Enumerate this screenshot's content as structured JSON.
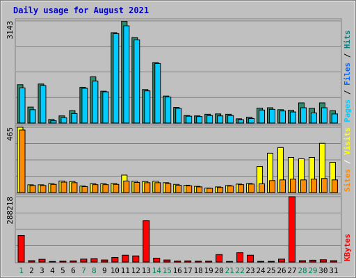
{
  "chart_data": {
    "type": "bar",
    "title": "Daily usage for August 2021",
    "days": [
      "1",
      "2",
      "3",
      "4",
      "5",
      "6",
      "7",
      "8",
      "9",
      "10",
      "11",
      "12",
      "13",
      "14",
      "15",
      "16",
      "17",
      "18",
      "19",
      "20",
      "21",
      "22",
      "23",
      "24",
      "25",
      "26",
      "27",
      "28",
      "29",
      "30",
      "31"
    ],
    "weekend_days": [
      "1",
      "7",
      "8",
      "14",
      "15",
      "21",
      "22",
      "28",
      "29"
    ],
    "panels": [
      {
        "max_label": "3143",
        "ymax": 3143,
        "legend": [
          "Pages",
          "Files",
          "Hits"
        ],
        "legend_colors": [
          "#00ccff",
          "#0066ff",
          "#008080"
        ],
        "series": [
          {
            "name": "Hits",
            "color": "#2e8b6e",
            "values": [
              1180,
              490,
              1200,
              110,
              220,
              380,
              1100,
              1420,
              980,
              2780,
              3130,
              2630,
              1030,
              1860,
              830,
              480,
              230,
              220,
              270,
              280,
              270,
              130,
              180,
              460,
              470,
              410,
              390,
              620,
              450,
              0,
              0
            ]
          },
          {
            "name": "Files",
            "color": "#00ccff",
            "values": [
              1080,
              410,
              1150,
              70,
              160,
              290,
              1070,
              1290,
              960,
              2750,
              2990,
              2560,
              990,
              1830,
              800,
              450,
              210,
              200,
              230,
              220,
              230,
              100,
              140,
              400,
              420,
              370,
              340,
              470,
              310,
              0,
              0
            ]
          }
        ],
        "hits_days_override": {
          "30": [
            620,
            470
          ],
          "31": [
            380,
            280
          ]
        }
      },
      {
        "max_label": "465",
        "ymax": 465,
        "legend": [
          "Sites",
          "/",
          "Visits"
        ],
        "legend_colors": [
          "#ff8800",
          "#ffffff",
          "#ffff00"
        ],
        "series": [
          {
            "name": "Visits",
            "color": "#ffff00",
            "values": [
              465,
              55,
              55,
              62,
              82,
              78,
              46,
              62,
              62,
              64,
              124,
              80,
              78,
              80,
              70,
              58,
              52,
              44,
              32,
              40,
              50,
              60,
              64,
              185,
              280,
              320,
              250,
              240,
              250,
              350,
              215
            ]
          },
          {
            "name": "Sites",
            "color": "#ff8c00",
            "values": [
              445,
              50,
              50,
              58,
              74,
              70,
              42,
              56,
              56,
              58,
              82,
              72,
              70,
              70,
              64,
              52,
              48,
              40,
              30,
              36,
              46,
              56,
              60,
              62,
              85,
              90,
              95,
              90,
              95,
              100,
              90
            ]
          }
        ]
      },
      {
        "max_label": "288218",
        "ymax": 288218,
        "legend": [
          "KBytes"
        ],
        "legend_colors": [
          "#ff0000"
        ],
        "series": [
          {
            "name": "KBytes",
            "color": "#ff0000",
            "values": [
              118000,
              6000,
              12000,
              2500,
              4000,
              5000,
              13000,
              15000,
              9000,
              20000,
              30000,
              27000,
              182000,
              17000,
              9000,
              4500,
              5000,
              4000,
              4000,
              33000,
              2500,
              41000,
              30000,
              3000,
              3000,
              13000,
              288218,
              6000,
              8000,
              10000,
              6000
            ]
          }
        ]
      }
    ]
  }
}
